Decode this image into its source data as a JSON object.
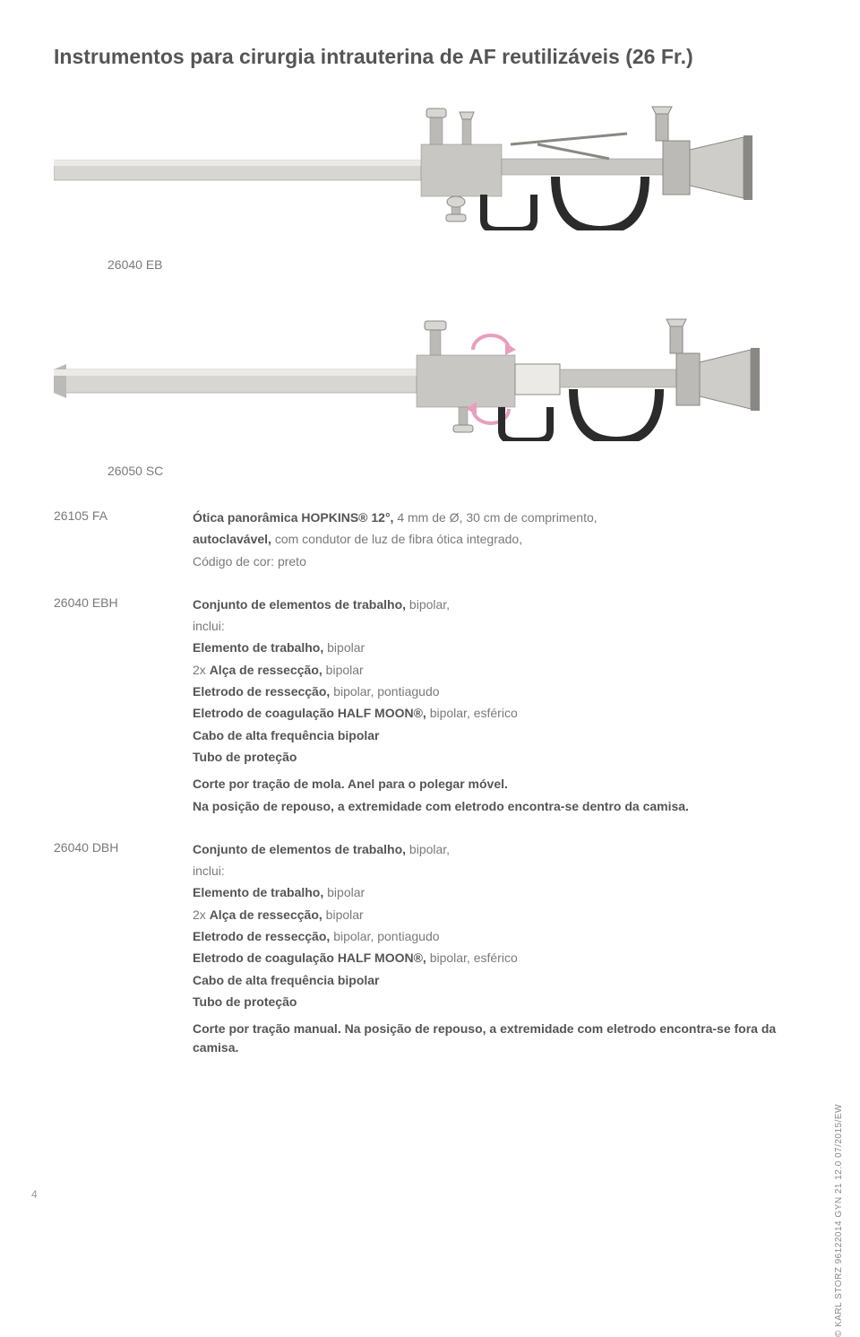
{
  "page": {
    "title": "Instrumentos para cirurgia intrauterina de AF reutilizáveis (26 Fr.)",
    "page_number": "4",
    "copyright": "© KARL STORZ 96122014 GYN 21 12.0 07/2015/EW"
  },
  "images": {
    "top_label": "26040 EB",
    "bottom_label": "26050 SC",
    "colors": {
      "metal_light": "#d8d6d2",
      "metal_mid": "#bcbab6",
      "metal_dark": "#8a8884",
      "ring_black": "#2b2b2b",
      "accent_pink": "#e89ebc"
    }
  },
  "specs": [
    {
      "code": "26105 FA",
      "lines": [
        {
          "t": "Ótica panorâmica HOPKINS® 12°, ",
          "b": true,
          "cont": "4 mm de Ø, 30 cm de comprimento,"
        },
        {
          "t": "autoclavável, ",
          "b": true,
          "cont": "com condutor de luz de fibra ótica integrado,"
        },
        {
          "t": "Código de cor: preto"
        }
      ]
    },
    {
      "code": "26040 EBH",
      "lines": [
        {
          "t": "Conjunto de elementos de trabalho, ",
          "b": true,
          "cont": "bipolar,"
        },
        {
          "t": "inclui:"
        },
        {
          "t": "Elemento de trabalho, ",
          "b": true,
          "cont": "bipolar"
        },
        {
          "t": "2x ",
          "cont_b": "Alça de ressecção, ",
          "cont2": "bipolar"
        },
        {
          "t": "Eletrodo de ressecção, ",
          "b": true,
          "cont": "bipolar, pontiagudo"
        },
        {
          "t": "Eletrodo de coagulação HALF MOON®, ",
          "b": true,
          "cont": "bipolar, esférico"
        },
        {
          "t": "Cabo de alta frequência bipolar",
          "b": true
        },
        {
          "t": "Tubo de proteção",
          "b": true
        }
      ],
      "trailer": [
        {
          "t": "Corte por tração de mola. Anel para o polegar móvel.",
          "b": true
        },
        {
          "t": "Na posição de repouso, a extremidade com eletrodo encontra-se dentro da camisa.",
          "b": true
        }
      ]
    },
    {
      "code": "26040 DBH",
      "lines": [
        {
          "t": "Conjunto de elementos de trabalho, ",
          "b": true,
          "cont": "bipolar,"
        },
        {
          "t": "inclui:"
        },
        {
          "t": "Elemento de trabalho, ",
          "b": true,
          "cont": "bipolar"
        },
        {
          "t": "2x ",
          "cont_b": "Alça de ressecção, ",
          "cont2": "bipolar"
        },
        {
          "t": "Eletrodo de ressecção, ",
          "b": true,
          "cont": "bipolar, pontiagudo"
        },
        {
          "t": "Eletrodo de coagulação HALF MOON®, ",
          "b": true,
          "cont": "bipolar, esférico"
        },
        {
          "t": "Cabo de alta frequência bipolar",
          "b": true
        },
        {
          "t": "Tubo de proteção",
          "b": true
        }
      ],
      "trailer": [
        {
          "t": "Corte por tração manual. Na posição de repouso, a extremidade com eletrodo encontra-se fora da camisa.",
          "b": true
        }
      ]
    }
  ]
}
